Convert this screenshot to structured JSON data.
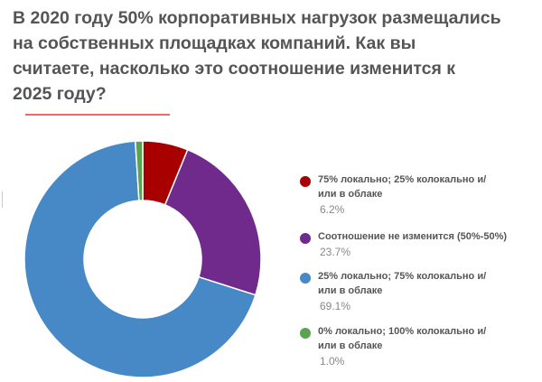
{
  "title_lines": [
    "В 2020 году 50% корпоративных нагрузок размещались",
    "на собственных площадках компаний. Как вы",
    "считаете, насколько это соотношение изменится к",
    "2025 году?"
  ],
  "colors": {
    "title": "#555555",
    "accent_rule": "#e86a6a",
    "legend_label": "#555555",
    "legend_value": "#888888"
  },
  "chart_data": {
    "type": "pie",
    "variant": "donut",
    "legend_position": "right",
    "series": [
      {
        "label_lines": [
          "75% локально; 25% колокально и/",
          "или в облаке"
        ],
        "label": "75% локально; 25% колокально и/или в облаке",
        "value": 6.2,
        "value_text": "6.2%",
        "color": "#a80000"
      },
      {
        "label_lines": [
          "Соотношение не изменится (50%-50%)"
        ],
        "label": "Соотношение не изменится (50%-50%)",
        "value": 23.7,
        "value_text": "23.7%",
        "color": "#6f2a8c"
      },
      {
        "label_lines": [
          "25% локально; 75% колокально и/",
          "или в облаке"
        ],
        "label": "25% локально; 75% колокально и/или в облаке",
        "value": 69.1,
        "value_text": "69.1%",
        "color": "#4689c6"
      },
      {
        "label_lines": [
          "0% локально; 100% колокально и/",
          "или в облаке"
        ],
        "label": "0% локально; 100% колокально и/или в облаке",
        "value": 1.0,
        "value_text": "1.0%",
        "color": "#5ba352"
      }
    ]
  }
}
